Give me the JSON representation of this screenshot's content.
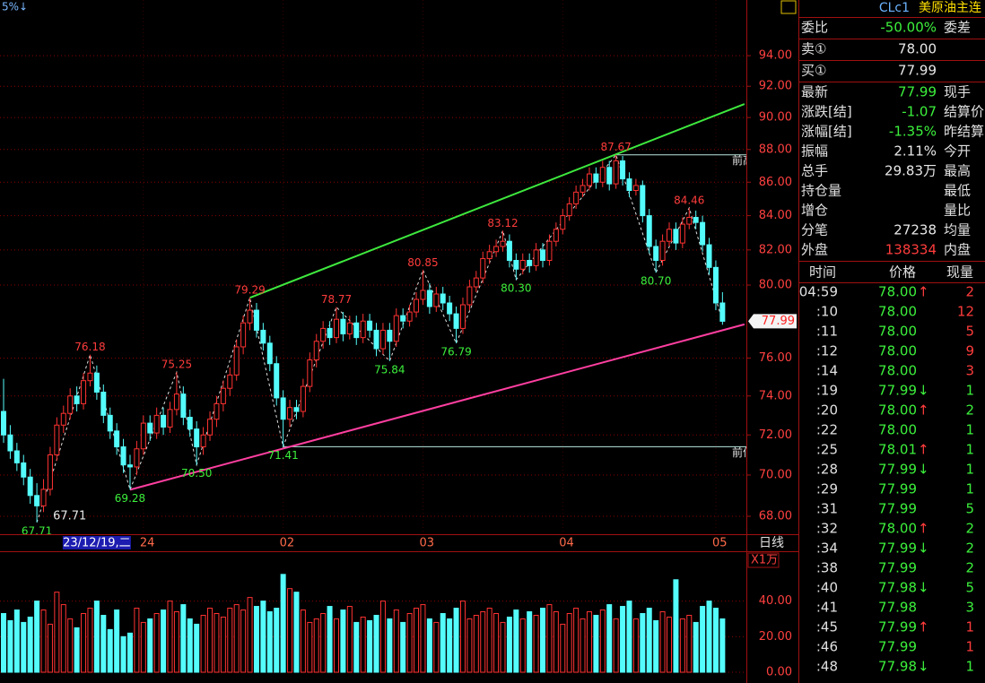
{
  "chart_data": [
    {
      "type": "candlestick",
      "indicator_text": "5%↓",
      "period": "日线",
      "log_scale": true,
      "grid": true,
      "up_color": "#ff3232",
      "down_color": "#54fcfc",
      "high_label_color": "#ff3c3c",
      "low_label_color": "#3cf03c",
      "ylim": [
        67.19,
        97.75
      ],
      "yticks": [
        {
          "value": 68,
          "label": "68.00"
        },
        {
          "value": 70,
          "label": "70.00"
        },
        {
          "value": 72,
          "label": "72.00"
        },
        {
          "value": 74,
          "label": "74.00"
        },
        {
          "value": 76,
          "label": "76.00"
        },
        {
          "value": 80,
          "label": "80.00"
        },
        {
          "value": 82,
          "label": "82.00"
        },
        {
          "value": 84,
          "label": "84.00"
        },
        {
          "value": 86,
          "label": "86.00"
        },
        {
          "value": 88,
          "label": "88.00"
        },
        {
          "value": 90,
          "label": "90.00"
        },
        {
          "value": 92,
          "label": "92.00"
        },
        {
          "value": 94,
          "label": "94.00"
        }
      ],
      "categories": [
        null,
        null,
        null,
        null,
        null,
        null,
        null,
        null,
        null,
        null,
        null,
        null,
        null,
        null,
        "23/12/19,二",
        null,
        null,
        null,
        null,
        null,
        null,
        "24",
        null,
        null,
        null,
        null,
        null,
        null,
        null,
        null,
        null,
        null,
        null,
        null,
        null,
        null,
        null,
        null,
        null,
        null,
        null,
        null,
        "02",
        null,
        null,
        null,
        null,
        null,
        null,
        null,
        null,
        null,
        null,
        null,
        null,
        null,
        null,
        null,
        null,
        null,
        null,
        null,
        null,
        "03",
        null,
        null,
        null,
        null,
        null,
        null,
        null,
        null,
        null,
        null,
        null,
        null,
        null,
        null,
        null,
        null,
        null,
        null,
        null,
        null,
        "04",
        null,
        null,
        null,
        null,
        null,
        null,
        null,
        null,
        null,
        null,
        null,
        null,
        null,
        null,
        null,
        null,
        null,
        null,
        null,
        null,
        null,
        null,
        "05",
        null
      ],
      "open": [
        73.2,
        72.0,
        71.2,
        70.6,
        69.9,
        69.0,
        68.5,
        69.3,
        71.0,
        72.5,
        73.1,
        74.0,
        73.6,
        74.8,
        75.2,
        74.2,
        73.0,
        72.2,
        71.4,
        70.5,
        70.4,
        71.3,
        72.6,
        72.1,
        73.0,
        72.4,
        73.3,
        74.1,
        72.9,
        72.3,
        71.4,
        72.0,
        72.8,
        73.6,
        74.4,
        75.1,
        76.6,
        77.9,
        78.6,
        77.5,
        76.8,
        75.7,
        73.9,
        72.8,
        73.4,
        73.2,
        74.5,
        75.9,
        76.9,
        77.6,
        77.1,
        78.1,
        77.3,
        77.9,
        77.1,
        78.0,
        77.5,
        76.5,
        77.5,
        76.9,
        78.3,
        78.0,
        78.5,
        79.2,
        79.7,
        78.8,
        79.5,
        79.0,
        78.4,
        77.6,
        78.9,
        79.9,
        80.4,
        81.5,
        81.9,
        82.2,
        82.5,
        81.4,
        80.9,
        81.4,
        81.1,
        82.0,
        81.4,
        82.5,
        83.2,
        84.0,
        84.7,
        85.4,
        85.8,
        86.5,
        86.0,
        86.9,
        85.9,
        87.3,
        86.2,
        85.5,
        85.8,
        84.0,
        82.2,
        81.4,
        82.5,
        83.2,
        82.4,
        83.5,
        83.9,
        83.6,
        82.3,
        81.0,
        79.0
      ],
      "high": [
        74.9,
        72.5,
        71.6,
        71.0,
        70.3,
        69.6,
        69.8,
        71.4,
        72.9,
        73.5,
        74.4,
        74.5,
        75.2,
        76.18,
        75.6,
        74.6,
        73.4,
        72.6,
        71.8,
        71.0,
        71.7,
        73.0,
        73.0,
        73.4,
        73.4,
        73.7,
        75.25,
        74.5,
        73.3,
        72.7,
        72.4,
        73.2,
        74.0,
        74.8,
        75.5,
        77.0,
        78.3,
        79.29,
        79.0,
        77.9,
        77.2,
        76.1,
        74.3,
        73.8,
        73.8,
        74.9,
        76.3,
        77.3,
        78.0,
        78.0,
        78.77,
        78.5,
        78.3,
        78.3,
        78.4,
        78.4,
        77.9,
        77.9,
        77.9,
        78.7,
        78.7,
        78.9,
        79.6,
        80.85,
        80.1,
        79.9,
        79.9,
        79.4,
        78.8,
        79.3,
        80.3,
        80.8,
        81.9,
        82.3,
        82.6,
        83.12,
        82.9,
        81.8,
        81.8,
        81.8,
        82.4,
        82.4,
        82.9,
        83.6,
        84.4,
        85.1,
        85.8,
        86.2,
        86.9,
        86.9,
        87.3,
        87.3,
        87.67,
        87.6,
        86.6,
        86.2,
        86.1,
        84.4,
        82.6,
        82.9,
        83.6,
        83.6,
        83.9,
        84.46,
        84.3,
        84.0,
        82.7,
        81.4,
        79.6
      ],
      "low": [
        71.6,
        70.8,
        70.2,
        69.5,
        68.6,
        67.71,
        68.2,
        69.0,
        70.7,
        72.1,
        72.8,
        73.2,
        73.3,
        74.5,
        73.8,
        72.6,
        71.8,
        71.0,
        70.1,
        69.28,
        70.0,
        71.0,
        71.7,
        71.8,
        72.0,
        72.1,
        73.0,
        72.5,
        71.9,
        70.5,
        71.0,
        71.7,
        72.4,
        73.2,
        74.0,
        74.8,
        76.2,
        77.5,
        77.1,
        76.4,
        75.3,
        73.5,
        71.41,
        72.4,
        72.8,
        72.9,
        74.2,
        75.5,
        76.5,
        76.7,
        76.8,
        76.9,
        77.0,
        76.7,
        76.8,
        77.1,
        76.1,
        76.2,
        75.84,
        76.6,
        77.6,
        77.7,
        78.2,
        78.9,
        78.4,
        78.5,
        78.6,
        78.0,
        76.79,
        77.3,
        78.6,
        79.6,
        80.1,
        81.2,
        81.6,
        81.9,
        81.0,
        80.3,
        80.6,
        80.7,
        80.8,
        81.0,
        81.1,
        82.2,
        82.9,
        83.7,
        84.4,
        85.1,
        85.5,
        85.6,
        85.7,
        85.5,
        85.6,
        85.8,
        85.1,
        85.2,
        83.6,
        81.8,
        80.7,
        81.1,
        82.2,
        82.0,
        82.1,
        83.2,
        83.2,
        81.9,
        80.6,
        78.6,
        77.8
      ],
      "close": [
        72.0,
        71.2,
        70.6,
        69.9,
        69.0,
        68.5,
        69.3,
        71.0,
        72.5,
        73.1,
        74.0,
        73.6,
        74.8,
        75.2,
        74.2,
        73.0,
        72.2,
        71.4,
        70.5,
        70.4,
        71.3,
        72.6,
        72.1,
        73.0,
        72.4,
        73.3,
        74.1,
        72.9,
        72.3,
        71.4,
        72.0,
        72.8,
        73.6,
        74.4,
        75.1,
        76.6,
        77.9,
        78.6,
        77.5,
        76.8,
        75.7,
        73.9,
        72.8,
        73.4,
        73.2,
        74.5,
        75.9,
        76.9,
        77.6,
        77.1,
        78.1,
        77.3,
        77.9,
        77.1,
        78.0,
        77.5,
        76.5,
        77.5,
        76.9,
        78.3,
        78.0,
        78.5,
        79.2,
        79.7,
        78.8,
        79.5,
        79.0,
        78.4,
        77.6,
        78.9,
        79.9,
        80.4,
        81.5,
        81.9,
        82.2,
        82.5,
        81.4,
        80.9,
        81.4,
        81.1,
        82.0,
        81.4,
        82.5,
        83.2,
        84.0,
        84.7,
        85.4,
        85.8,
        86.5,
        86.0,
        86.9,
        85.9,
        87.3,
        86.2,
        85.5,
        85.8,
        84.0,
        82.2,
        81.4,
        82.5,
        83.2,
        82.4,
        83.5,
        83.9,
        83.6,
        82.3,
        81.0,
        79.0,
        77.99
      ],
      "high_labels": [
        null,
        null,
        null,
        null,
        null,
        null,
        null,
        null,
        null,
        null,
        null,
        null,
        null,
        "76.18",
        null,
        null,
        null,
        null,
        null,
        null,
        null,
        null,
        null,
        null,
        null,
        null,
        "75.25",
        null,
        null,
        null,
        null,
        null,
        null,
        null,
        null,
        null,
        null,
        "79.29",
        null,
        null,
        null,
        null,
        null,
        null,
        null,
        null,
        null,
        null,
        null,
        null,
        "78.77",
        null,
        null,
        null,
        null,
        null,
        null,
        null,
        null,
        null,
        null,
        null,
        null,
        "80.85",
        null,
        null,
        null,
        null,
        null,
        null,
        null,
        null,
        null,
        null,
        null,
        "83.12",
        null,
        null,
        null,
        null,
        null,
        null,
        null,
        null,
        null,
        null,
        null,
        null,
        null,
        null,
        null,
        null,
        "87.67",
        null,
        null,
        null,
        null,
        null,
        null,
        null,
        null,
        null,
        null,
        "84.46",
        null,
        null,
        null,
        null,
        null
      ],
      "low_labels": [
        null,
        null,
        null,
        null,
        null,
        "67.71",
        null,
        null,
        null,
        null,
        null,
        null,
        null,
        null,
        null,
        null,
        null,
        null,
        null,
        "69.28",
        null,
        null,
        null,
        null,
        null,
        null,
        null,
        null,
        null,
        "70.50",
        null,
        null,
        null,
        null,
        null,
        null,
        null,
        null,
        null,
        null,
        null,
        null,
        "71.41",
        null,
        null,
        null,
        null,
        null,
        null,
        null,
        null,
        null,
        null,
        null,
        null,
        null,
        null,
        null,
        "75.84",
        null,
        null,
        null,
        null,
        null,
        null,
        null,
        null,
        null,
        "76.79",
        null,
        null,
        null,
        null,
        null,
        null,
        null,
        null,
        "80.30",
        null,
        null,
        null,
        null,
        null,
        null,
        null,
        null,
        null,
        null,
        null,
        null,
        null,
        null,
        null,
        null,
        null,
        null,
        null,
        null,
        "80.70",
        null,
        null,
        null,
        null,
        null,
        null,
        null,
        null,
        null,
        null
      ],
      "trend_lines": [
        {
          "color": "#3ee83e",
          "start": [
            37,
            79.29
          ],
          "end": [
            111.3,
            90.86
          ]
        },
        {
          "color": "#ff3fa0",
          "start": [
            19,
            69.28
          ],
          "end": [
            111.3,
            77.82
          ]
        }
      ],
      "level_lines": [
        {
          "color": "#b8e8e0",
          "value": 87.67,
          "start": 92,
          "label": "前高"
        },
        {
          "color": "#b8e8e0",
          "value": 71.41,
          "start": 42,
          "label": "前低"
        }
      ]
    },
    {
      "type": "bar",
      "unit_label": "X1万",
      "ylim": [
        0,
        67
      ],
      "yticks": [
        {
          "value": 0,
          "label": "0.00"
        },
        {
          "value": 20,
          "label": "20.00"
        },
        {
          "value": 40,
          "label": "40.00"
        }
      ],
      "values": [
        33,
        29,
        35,
        28,
        31,
        40,
        35,
        27,
        45,
        38,
        30,
        25,
        33,
        36,
        40,
        32,
        24,
        35,
        20,
        22,
        36,
        28,
        30,
        33,
        35,
        40,
        34,
        38,
        30,
        27,
        32,
        36,
        33,
        31,
        36,
        38,
        35,
        42,
        37,
        40,
        34,
        36,
        55,
        47,
        45,
        35,
        28,
        30,
        33,
        37,
        30,
        35,
        37,
        28,
        31,
        29,
        32,
        40,
        30,
        35,
        28,
        33,
        36,
        38,
        30,
        28,
        33,
        30,
        36,
        40,
        30,
        32,
        34,
        36,
        33,
        28,
        31,
        35,
        30,
        34,
        32,
        36,
        38,
        34,
        27,
        33,
        36,
        30,
        34,
        32,
        35,
        38,
        30,
        37,
        40,
        30,
        33,
        36,
        29,
        34,
        31,
        52,
        30,
        32,
        28,
        37,
        40,
        36,
        30
      ]
    }
  ],
  "quote": {
    "code": "CLc1",
    "name": "美原油主连",
    "rows": [
      {
        "label": "委比",
        "value": "-50.00%",
        "color": "#3cf03c",
        "right": "委差"
      },
      {
        "label": "卖①",
        "value": "78.00",
        "color": "#e8e8e8"
      },
      {
        "label": "买①",
        "value": "77.99",
        "color": "#e8e8e8"
      },
      {
        "label": "最新",
        "value": "77.99",
        "color": "#3cf03c",
        "right": "现手"
      },
      {
        "label": "涨跌[结]",
        "value": "-1.07",
        "color": "#3cf03c",
        "right": "结算价"
      },
      {
        "label": "涨幅[结]",
        "value": "-1.35%",
        "color": "#3cf03c",
        "right": "昨结算"
      },
      {
        "label": "振幅",
        "value": "2.11%",
        "color": "#e8e8e8",
        "right": "今开"
      },
      {
        "label": "总手",
        "value": "29.83万",
        "color": "#e8e8e8",
        "right": "最高"
      },
      {
        "label": "持仓量",
        "right": "最低"
      },
      {
        "label": "增仓",
        "right": "量比"
      },
      {
        "label": "分笔",
        "value": "27238",
        "color": "#e8e8e8",
        "right": "均量"
      },
      {
        "label": "外盘",
        "value": "138334",
        "color": "#ff3c3c",
        "right": "内盘"
      }
    ]
  },
  "trades": {
    "header": [
      "时间",
      "价格",
      "现量"
    ],
    "price_color": "#3cf03c",
    "rows": [
      {
        "time": "04:59",
        "price": "78.00",
        "arrow": "↑",
        "arrow_color": "#ff3c3c",
        "qty": "2",
        "qty_color": "#ff3c3c"
      },
      {
        "time": ":10",
        "price": "78.00",
        "qty": "12",
        "qty_color": "#ff3c3c"
      },
      {
        "time": ":11",
        "price": "78.00",
        "qty": "5",
        "qty_color": "#ff3c3c"
      },
      {
        "time": ":12",
        "price": "78.00",
        "qty": "9",
        "qty_color": "#ff3c3c"
      },
      {
        "time": ":14",
        "price": "78.00",
        "qty": "3",
        "qty_color": "#ff3c3c"
      },
      {
        "time": ":19",
        "price": "77.99",
        "arrow": "↓",
        "arrow_color": "#3cf03c",
        "qty": "1",
        "qty_color": "#3cf03c"
      },
      {
        "time": ":20",
        "price": "78.00",
        "arrow": "↑",
        "arrow_color": "#ff3c3c",
        "qty": "2",
        "qty_color": "#3cf03c"
      },
      {
        "time": ":22",
        "price": "78.00",
        "qty": "1",
        "qty_color": "#3cf03c"
      },
      {
        "time": ":25",
        "price": "78.01",
        "arrow": "↑",
        "arrow_color": "#ff3c3c",
        "qty": "1",
        "qty_color": "#3cf03c"
      },
      {
        "time": ":28",
        "price": "77.99",
        "arrow": "↓",
        "arrow_color": "#3cf03c",
        "qty": "1",
        "qty_color": "#3cf03c"
      },
      {
        "time": ":29",
        "price": "77.99",
        "qty": "1",
        "qty_color": "#3cf03c"
      },
      {
        "time": ":31",
        "price": "77.99",
        "qty": "5",
        "qty_color": "#3cf03c"
      },
      {
        "time": ":32",
        "price": "78.00",
        "arrow": "↑",
        "arrow_color": "#ff3c3c",
        "qty": "2",
        "qty_color": "#3cf03c"
      },
      {
        "time": ":34",
        "price": "77.99",
        "arrow": "↓",
        "arrow_color": "#3cf03c",
        "qty": "2",
        "qty_color": "#3cf03c"
      },
      {
        "time": ":38",
        "price": "77.99",
        "qty": "2",
        "qty_color": "#3cf03c"
      },
      {
        "time": ":40",
        "price": "77.98",
        "arrow": "↓",
        "arrow_color": "#3cf03c",
        "qty": "5",
        "qty_color": "#3cf03c"
      },
      {
        "time": ":41",
        "price": "77.98",
        "qty": "3",
        "qty_color": "#3cf03c"
      },
      {
        "time": ":45",
        "price": "77.99",
        "arrow": "↑",
        "arrow_color": "#ff3c3c",
        "qty": "1",
        "qty_color": "#ff3c3c"
      },
      {
        "time": ":46",
        "price": "77.99",
        "qty": "1",
        "qty_color": "#ff3c3c"
      },
      {
        "time": ":48",
        "price": "77.98",
        "arrow": "↓",
        "arrow_color": "#3cf03c",
        "qty": "1",
        "qty_color": "#3cf03c"
      }
    ]
  }
}
